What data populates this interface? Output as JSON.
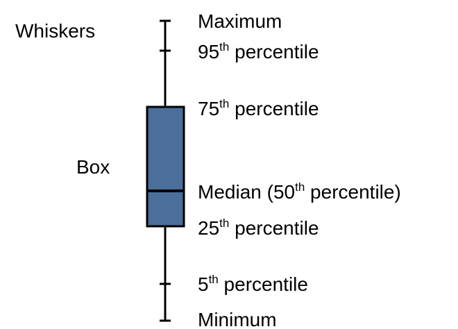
{
  "legend_labels": {
    "whiskers": "Whiskers",
    "box": "Box"
  },
  "stat_labels": {
    "maximum": "Maximum",
    "p95": {
      "num": "95",
      "sup": "th",
      "rest": " percentile"
    },
    "p75": {
      "num": "75",
      "sup": "th",
      "rest": " percentile"
    },
    "median": {
      "pre": "Median (50",
      "sup": "th",
      "rest": " percentile)"
    },
    "p25": {
      "num": "25",
      "sup": "th",
      "rest": " percentile"
    },
    "p5": {
      "num": "5",
      "sup": "th",
      "rest": " percentile"
    },
    "minimum": "Minimum"
  },
  "colors": {
    "box_fill": "#4b6e9a",
    "stroke": "#000000"
  }
}
